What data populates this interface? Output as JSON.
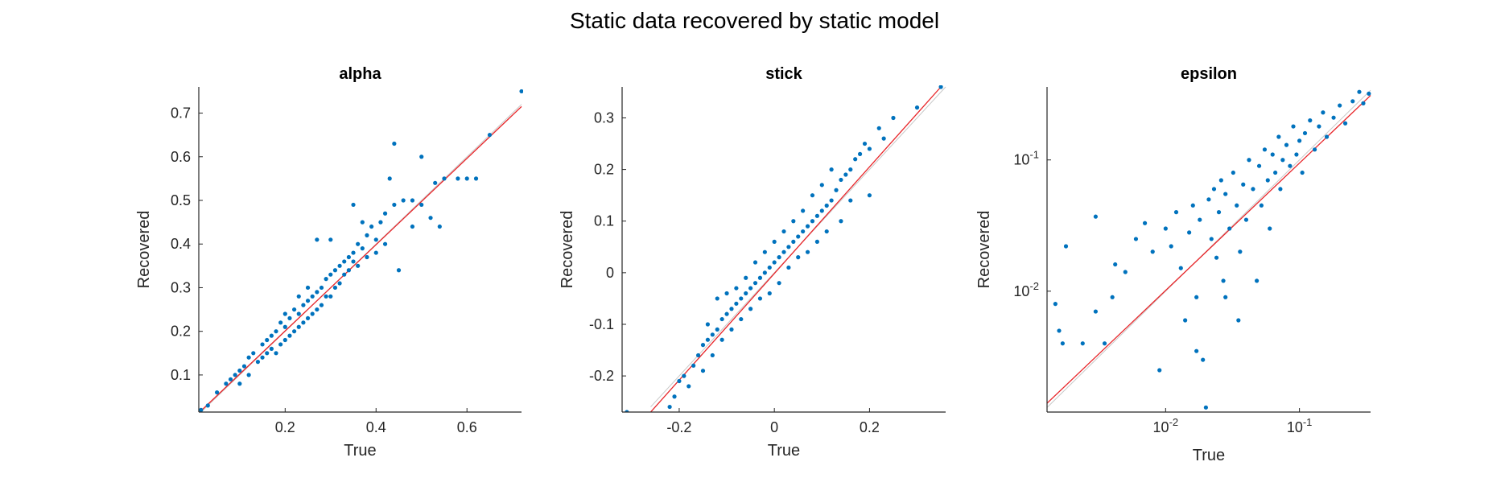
{
  "figure": {
    "title": "Static data recovered by static model"
  },
  "style": {
    "point_color": "#0072BD",
    "fit_color": "#E8262A",
    "identity_color": "#C8C8C8",
    "axis_color": "#262626"
  },
  "chart_data": [
    {
      "type": "scatter",
      "title": "alpha",
      "xlabel": "True",
      "ylabel": "Recovered",
      "xscale": "linear",
      "yscale": "linear",
      "xlim": [
        0.01,
        0.72
      ],
      "ylim": [
        0.015,
        0.76
      ],
      "xticks": [
        0.2,
        0.4,
        0.6
      ],
      "xtick_labels": [
        "0.2",
        "0.4",
        "0.6"
      ],
      "yticks": [
        0.1,
        0.2,
        0.3,
        0.4,
        0.5,
        0.6,
        0.7
      ],
      "ytick_labels": [
        "0.1",
        "0.2",
        "0.3",
        "0.4",
        "0.5",
        "0.6",
        "0.7"
      ],
      "fit_line": {
        "x": [
          0.01,
          0.72
        ],
        "y": [
          0.013,
          0.715
        ]
      },
      "identity_line": {
        "x": [
          0.01,
          0.72
        ],
        "y": [
          0.01,
          0.72
        ]
      },
      "points": [
        [
          0.015,
          0.02
        ],
        [
          0.03,
          0.03
        ],
        [
          0.05,
          0.06
        ],
        [
          0.07,
          0.08
        ],
        [
          0.08,
          0.09
        ],
        [
          0.09,
          0.1
        ],
        [
          0.1,
          0.11
        ],
        [
          0.1,
          0.08
        ],
        [
          0.11,
          0.12
        ],
        [
          0.12,
          0.14
        ],
        [
          0.12,
          0.1
        ],
        [
          0.13,
          0.15
        ],
        [
          0.14,
          0.13
        ],
        [
          0.15,
          0.17
        ],
        [
          0.15,
          0.14
        ],
        [
          0.16,
          0.18
        ],
        [
          0.16,
          0.15
        ],
        [
          0.17,
          0.19
        ],
        [
          0.17,
          0.16
        ],
        [
          0.18,
          0.2
        ],
        [
          0.18,
          0.15
        ],
        [
          0.19,
          0.22
        ],
        [
          0.19,
          0.17
        ],
        [
          0.2,
          0.21
        ],
        [
          0.2,
          0.24
        ],
        [
          0.2,
          0.18
        ],
        [
          0.21,
          0.23
        ],
        [
          0.21,
          0.19
        ],
        [
          0.22,
          0.25
        ],
        [
          0.22,
          0.2
        ],
        [
          0.23,
          0.24
        ],
        [
          0.23,
          0.28
        ],
        [
          0.23,
          0.21
        ],
        [
          0.24,
          0.26
        ],
        [
          0.24,
          0.22
        ],
        [
          0.25,
          0.27
        ],
        [
          0.25,
          0.3
        ],
        [
          0.25,
          0.23
        ],
        [
          0.26,
          0.28
        ],
        [
          0.26,
          0.24
        ],
        [
          0.27,
          0.29
        ],
        [
          0.27,
          0.41
        ],
        [
          0.27,
          0.25
        ],
        [
          0.28,
          0.3
        ],
        [
          0.28,
          0.26
        ],
        [
          0.29,
          0.32
        ],
        [
          0.29,
          0.28
        ],
        [
          0.3,
          0.33
        ],
        [
          0.3,
          0.41
        ],
        [
          0.3,
          0.28
        ],
        [
          0.31,
          0.34
        ],
        [
          0.31,
          0.3
        ],
        [
          0.32,
          0.35
        ],
        [
          0.32,
          0.31
        ],
        [
          0.33,
          0.36
        ],
        [
          0.33,
          0.33
        ],
        [
          0.34,
          0.37
        ],
        [
          0.34,
          0.34
        ],
        [
          0.35,
          0.38
        ],
        [
          0.35,
          0.49
        ],
        [
          0.35,
          0.36
        ],
        [
          0.36,
          0.4
        ],
        [
          0.36,
          0.35
        ],
        [
          0.37,
          0.39
        ],
        [
          0.37,
          0.45
        ],
        [
          0.38,
          0.42
        ],
        [
          0.38,
          0.37
        ],
        [
          0.39,
          0.44
        ],
        [
          0.4,
          0.41
        ],
        [
          0.4,
          0.38
        ],
        [
          0.41,
          0.45
        ],
        [
          0.42,
          0.47
        ],
        [
          0.42,
          0.4
        ],
        [
          0.43,
          0.55
        ],
        [
          0.44,
          0.63
        ],
        [
          0.44,
          0.49
        ],
        [
          0.45,
          0.34
        ],
        [
          0.46,
          0.5
        ],
        [
          0.48,
          0.5
        ],
        [
          0.48,
          0.44
        ],
        [
          0.5,
          0.49
        ],
        [
          0.5,
          0.6
        ],
        [
          0.52,
          0.46
        ],
        [
          0.53,
          0.54
        ],
        [
          0.54,
          0.44
        ],
        [
          0.55,
          0.55
        ],
        [
          0.58,
          0.55
        ],
        [
          0.6,
          0.55
        ],
        [
          0.62,
          0.55
        ],
        [
          0.65,
          0.65
        ],
        [
          0.72,
          0.75
        ],
        [
          0.0,
          0.0
        ]
      ]
    },
    {
      "type": "scatter",
      "title": "stick",
      "xlabel": "True",
      "ylabel": "Recovered",
      "xscale": "linear",
      "yscale": "linear",
      "xlim": [
        -0.32,
        0.36
      ],
      "ylim": [
        -0.27,
        0.36
      ],
      "xticks": [
        -0.2,
        0,
        0.2
      ],
      "xtick_labels": [
        "-0.2",
        "0",
        "0.2"
      ],
      "yticks": [
        -0.2,
        -0.1,
        0,
        0.1,
        0.2,
        0.3
      ],
      "ytick_labels": [
        "-0.2",
        "-0.1",
        "0",
        "0.1",
        "0.2",
        "0.3"
      ],
      "fit_line": {
        "x": [
          -0.26,
          0.35
        ],
        "y": [
          -0.27,
          0.36
        ]
      },
      "identity_line": {
        "x": [
          -0.26,
          0.36
        ],
        "y": [
          -0.26,
          0.36
        ]
      },
      "points": [
        [
          -0.31,
          -0.27
        ],
        [
          -0.22,
          -0.26
        ],
        [
          -0.21,
          -0.24
        ],
        [
          -0.2,
          -0.21
        ],
        [
          -0.19,
          -0.2
        ],
        [
          -0.18,
          -0.22
        ],
        [
          -0.17,
          -0.18
        ],
        [
          -0.16,
          -0.16
        ],
        [
          -0.15,
          -0.14
        ],
        [
          -0.15,
          -0.19
        ],
        [
          -0.14,
          -0.13
        ],
        [
          -0.14,
          -0.1
        ],
        [
          -0.13,
          -0.12
        ],
        [
          -0.13,
          -0.16
        ],
        [
          -0.12,
          -0.11
        ],
        [
          -0.12,
          -0.05
        ],
        [
          -0.11,
          -0.09
        ],
        [
          -0.11,
          -0.13
        ],
        [
          -0.1,
          -0.08
        ],
        [
          -0.1,
          -0.04
        ],
        [
          -0.09,
          -0.07
        ],
        [
          -0.09,
          -0.11
        ],
        [
          -0.08,
          -0.06
        ],
        [
          -0.08,
          -0.03
        ],
        [
          -0.07,
          -0.05
        ],
        [
          -0.07,
          -0.09
        ],
        [
          -0.06,
          -0.04
        ],
        [
          -0.06,
          -0.01
        ],
        [
          -0.05,
          -0.03
        ],
        [
          -0.05,
          -0.07
        ],
        [
          -0.04,
          -0.02
        ],
        [
          -0.04,
          0.02
        ],
        [
          -0.03,
          -0.01
        ],
        [
          -0.03,
          -0.05
        ],
        [
          -0.02,
          0.0
        ],
        [
          -0.02,
          0.04
        ],
        [
          -0.01,
          0.01
        ],
        [
          -0.01,
          -0.04
        ],
        [
          0.0,
          0.02
        ],
        [
          0.0,
          0.06
        ],
        [
          0.01,
          0.03
        ],
        [
          0.01,
          -0.02
        ],
        [
          0.02,
          0.04
        ],
        [
          0.02,
          0.08
        ],
        [
          0.03,
          0.05
        ],
        [
          0.03,
          0.01
        ],
        [
          0.04,
          0.06
        ],
        [
          0.04,
          0.1
        ],
        [
          0.05,
          0.07
        ],
        [
          0.05,
          0.03
        ],
        [
          0.06,
          0.08
        ],
        [
          0.06,
          0.12
        ],
        [
          0.07,
          0.09
        ],
        [
          0.07,
          0.04
        ],
        [
          0.08,
          0.1
        ],
        [
          0.08,
          0.15
        ],
        [
          0.09,
          0.11
        ],
        [
          0.09,
          0.06
        ],
        [
          0.1,
          0.12
        ],
        [
          0.1,
          0.17
        ],
        [
          0.11,
          0.13
        ],
        [
          0.11,
          0.08
        ],
        [
          0.12,
          0.14
        ],
        [
          0.12,
          0.2
        ],
        [
          0.13,
          0.16
        ],
        [
          0.14,
          0.18
        ],
        [
          0.14,
          0.1
        ],
        [
          0.15,
          0.19
        ],
        [
          0.16,
          0.2
        ],
        [
          0.16,
          0.14
        ],
        [
          0.17,
          0.22
        ],
        [
          0.18,
          0.23
        ],
        [
          0.19,
          0.25
        ],
        [
          0.2,
          0.24
        ],
        [
          0.2,
          0.15
        ],
        [
          0.22,
          0.28
        ],
        [
          0.23,
          0.26
        ],
        [
          0.25,
          0.3
        ],
        [
          0.3,
          0.32
        ],
        [
          0.35,
          0.36
        ]
      ]
    },
    {
      "type": "scatter",
      "title": "epsilon",
      "xlabel": "True",
      "ylabel": "Recovered",
      "xscale": "log",
      "yscale": "log",
      "xlim": [
        0.0013,
        0.34
      ],
      "ylim": [
        0.0012,
        0.36
      ],
      "xticks": [
        0.01,
        0.1
      ],
      "xtick_labels": [
        "10^-2",
        "10^-1"
      ],
      "yticks": [
        0.01,
        0.1
      ],
      "ytick_labels": [
        "10^-2",
        "10^-1"
      ],
      "fit_line": {
        "x": [
          0.0013,
          0.34
        ],
        "y": [
          0.0014,
          0.31
        ]
      },
      "identity_line": {
        "x": [
          0.0013,
          0.34
        ],
        "y": [
          0.0013,
          0.34
        ]
      },
      "points": [
        [
          0.0015,
          0.008
        ],
        [
          0.0016,
          0.005
        ],
        [
          0.0017,
          0.004
        ],
        [
          0.0018,
          0.022
        ],
        [
          0.0024,
          0.004
        ],
        [
          0.003,
          0.037
        ],
        [
          0.003,
          0.007
        ],
        [
          0.0035,
          0.004
        ],
        [
          0.004,
          0.009
        ],
        [
          0.0042,
          0.016
        ],
        [
          0.005,
          0.014
        ],
        [
          0.006,
          0.025
        ],
        [
          0.007,
          0.033
        ],
        [
          0.008,
          0.02
        ],
        [
          0.009,
          0.0025
        ],
        [
          0.01,
          0.03
        ],
        [
          0.011,
          0.022
        ],
        [
          0.012,
          0.04
        ],
        [
          0.013,
          0.015
        ],
        [
          0.014,
          0.006
        ],
        [
          0.015,
          0.028
        ],
        [
          0.016,
          0.045
        ],
        [
          0.017,
          0.009
        ],
        [
          0.018,
          0.035
        ],
        [
          0.019,
          0.003
        ],
        [
          0.02,
          0.0013
        ],
        [
          0.021,
          0.05
        ],
        [
          0.022,
          0.025
        ],
        [
          0.023,
          0.06
        ],
        [
          0.024,
          0.018
        ],
        [
          0.025,
          0.04
        ],
        [
          0.026,
          0.07
        ],
        [
          0.027,
          0.012
        ],
        [
          0.028,
          0.055
        ],
        [
          0.03,
          0.03
        ],
        [
          0.032,
          0.08
        ],
        [
          0.034,
          0.045
        ],
        [
          0.036,
          0.02
        ],
        [
          0.038,
          0.065
        ],
        [
          0.04,
          0.035
        ],
        [
          0.042,
          0.1
        ],
        [
          0.045,
          0.06
        ],
        [
          0.048,
          0.012
        ],
        [
          0.05,
          0.09
        ],
        [
          0.052,
          0.045
        ],
        [
          0.055,
          0.12
        ],
        [
          0.058,
          0.07
        ],
        [
          0.06,
          0.03
        ],
        [
          0.063,
          0.11
        ],
        [
          0.066,
          0.08
        ],
        [
          0.07,
          0.15
        ],
        [
          0.072,
          0.06
        ],
        [
          0.075,
          0.1
        ],
        [
          0.08,
          0.13
        ],
        [
          0.085,
          0.09
        ],
        [
          0.09,
          0.18
        ],
        [
          0.095,
          0.11
        ],
        [
          0.1,
          0.14
        ],
        [
          0.105,
          0.08
        ],
        [
          0.11,
          0.16
        ],
        [
          0.12,
          0.2
        ],
        [
          0.13,
          0.12
        ],
        [
          0.14,
          0.18
        ],
        [
          0.15,
          0.23
        ],
        [
          0.16,
          0.15
        ],
        [
          0.18,
          0.21
        ],
        [
          0.2,
          0.26
        ],
        [
          0.22,
          0.19
        ],
        [
          0.25,
          0.28
        ],
        [
          0.28,
          0.33
        ],
        [
          0.3,
          0.27
        ],
        [
          0.33,
          0.32
        ],
        [
          0.017,
          0.0035
        ],
        [
          0.028,
          0.009
        ],
        [
          0.035,
          0.006
        ]
      ]
    }
  ]
}
